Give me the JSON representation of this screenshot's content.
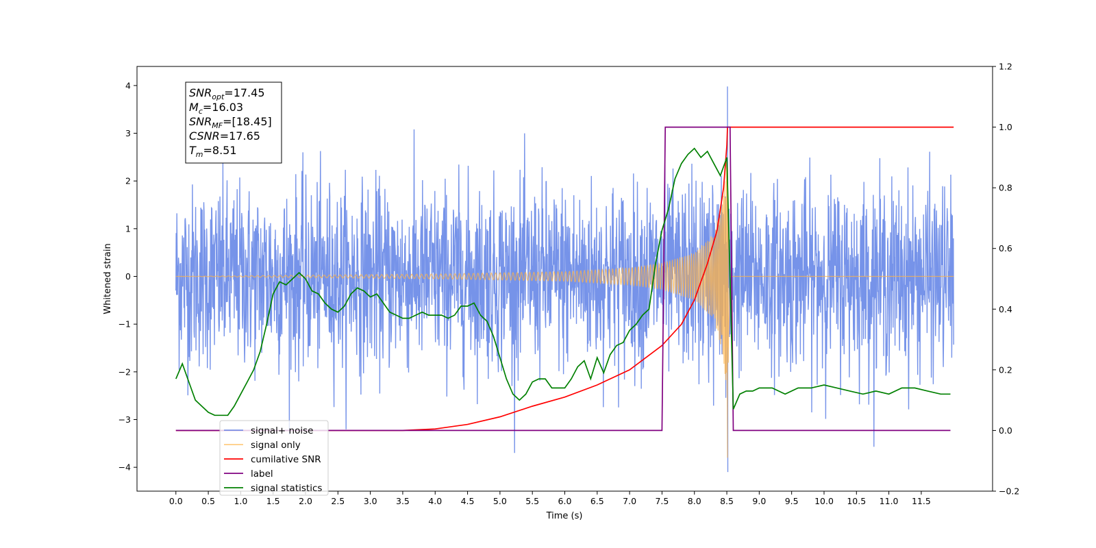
{
  "chart_data": {
    "type": "line",
    "xlabel": "Time (s)",
    "ylabel": "Whitened strain",
    "xlim": [
      -0.6,
      12.6
    ],
    "ylim": [
      -4.5,
      4.4
    ],
    "y2lim": [
      -0.2,
      1.2
    ],
    "x_ticks": [
      "0.0",
      "0.5",
      "1.0",
      "1.5",
      "2.0",
      "2.5",
      "3.0",
      "3.5",
      "4.0",
      "4.5",
      "5.0",
      "5.5",
      "6.0",
      "6.5",
      "7.0",
      "7.5",
      "8.0",
      "8.5",
      "9.0",
      "9.5",
      "10.0",
      "10.5",
      "11.0",
      "11.5"
    ],
    "y_ticks": [
      "−4",
      "−3",
      "−2",
      "−1",
      "0",
      "1",
      "2",
      "3",
      "4"
    ],
    "y2_ticks": [
      "−0.2",
      "0.0",
      "0.2",
      "0.4",
      "0.6",
      "0.8",
      "1.0",
      "1.2"
    ],
    "grid": false,
    "legend_position": "lower-left",
    "annotation": {
      "lines": [
        {
          "sym": "SNR",
          "sub": "opt",
          "value": "=17.45"
        },
        {
          "sym": "M",
          "sub": "c",
          "value": "=16.03"
        },
        {
          "sym": "SNR",
          "sub": "MF",
          "value": "=[18.45]"
        },
        {
          "sym": "CSNR",
          "sub": "",
          "value": "=17.65"
        },
        {
          "sym": "T",
          "sub": "m",
          "value": "=8.51"
        }
      ]
    },
    "series": [
      {
        "name": "signal+ noise",
        "color": "#4169e1",
        "axis": "left",
        "kind": "noise",
        "x_range": [
          0.0,
          12.0
        ],
        "center": 0.0,
        "envelope": 2.4,
        "max": 3.98,
        "min": -4.1
      },
      {
        "name": "signal only",
        "color": "#ffb347",
        "axis": "left",
        "kind": "chirp",
        "x_range": [
          0.0,
          12.0
        ],
        "merger_time": 8.51,
        "peak_amplitude": [
          2.0,
          -3.8
        ],
        "envelope": {
          "x": [
            0.0,
            4.0,
            6.0,
            7.0,
            7.5,
            8.0,
            8.3,
            8.45,
            8.51,
            8.55
          ],
          "amp": [
            0.0,
            0.05,
            0.1,
            0.18,
            0.28,
            0.5,
            0.9,
            1.7,
            3.0,
            0.0
          ]
        }
      },
      {
        "name": "cumilative SNR",
        "color": "#ff0000",
        "axis": "right",
        "x": [
          0.0,
          3.5,
          4.0,
          4.5,
          5.0,
          5.5,
          6.0,
          6.5,
          7.0,
          7.5,
          7.8,
          8.0,
          8.2,
          8.35,
          8.45,
          8.5,
          8.51,
          12.0
        ],
        "y": [
          0.0,
          0.0,
          0.005,
          0.02,
          0.045,
          0.08,
          0.11,
          0.15,
          0.2,
          0.28,
          0.35,
          0.43,
          0.55,
          0.66,
          0.8,
          0.94,
          1.0,
          1.0
        ]
      },
      {
        "name": "label",
        "color": "#800080",
        "axis": "right",
        "x": [
          0.0,
          7.5,
          7.55,
          8.55,
          8.6,
          11.95
        ],
        "y": [
          0.0,
          0.0,
          1.0,
          1.0,
          0.0,
          0.0
        ]
      },
      {
        "name": "signal statistics",
        "color": "#008000",
        "axis": "right",
        "x": [
          0.0,
          0.1,
          0.2,
          0.3,
          0.4,
          0.5,
          0.6,
          0.7,
          0.8,
          0.9,
          1.0,
          1.1,
          1.2,
          1.3,
          1.4,
          1.5,
          1.6,
          1.7,
          1.8,
          1.9,
          2.0,
          2.1,
          2.2,
          2.3,
          2.4,
          2.5,
          2.6,
          2.7,
          2.8,
          2.9,
          3.0,
          3.1,
          3.2,
          3.3,
          3.4,
          3.5,
          3.6,
          3.7,
          3.8,
          3.9,
          4.0,
          4.1,
          4.2,
          4.3,
          4.4,
          4.5,
          4.6,
          4.7,
          4.8,
          4.9,
          5.0,
          5.1,
          5.2,
          5.3,
          5.4,
          5.5,
          5.6,
          5.7,
          5.8,
          5.9,
          6.0,
          6.1,
          6.2,
          6.3,
          6.4,
          6.5,
          6.6,
          6.7,
          6.8,
          6.9,
          7.0,
          7.1,
          7.2,
          7.3,
          7.4,
          7.5,
          7.6,
          7.7,
          7.8,
          7.9,
          8.0,
          8.1,
          8.2,
          8.3,
          8.4,
          8.5,
          8.55,
          8.6,
          8.7,
          8.8,
          8.9,
          9.0,
          9.2,
          9.4,
          9.6,
          9.8,
          10.0,
          10.2,
          10.4,
          10.6,
          10.8,
          11.0,
          11.2,
          11.4,
          11.6,
          11.8,
          11.95
        ],
        "y": [
          0.17,
          0.22,
          0.16,
          0.1,
          0.08,
          0.06,
          0.05,
          0.05,
          0.05,
          0.08,
          0.12,
          0.16,
          0.2,
          0.26,
          0.35,
          0.45,
          0.49,
          0.48,
          0.5,
          0.52,
          0.5,
          0.46,
          0.45,
          0.42,
          0.4,
          0.39,
          0.41,
          0.45,
          0.47,
          0.46,
          0.44,
          0.45,
          0.42,
          0.39,
          0.38,
          0.37,
          0.37,
          0.38,
          0.39,
          0.38,
          0.38,
          0.38,
          0.37,
          0.38,
          0.41,
          0.41,
          0.42,
          0.38,
          0.36,
          0.31,
          0.24,
          0.17,
          0.12,
          0.1,
          0.12,
          0.16,
          0.17,
          0.17,
          0.14,
          0.14,
          0.14,
          0.17,
          0.21,
          0.23,
          0.17,
          0.24,
          0.19,
          0.25,
          0.28,
          0.29,
          0.33,
          0.35,
          0.38,
          0.4,
          0.55,
          0.66,
          0.73,
          0.83,
          0.88,
          0.91,
          0.93,
          0.9,
          0.92,
          0.88,
          0.84,
          0.9,
          0.5,
          0.07,
          0.12,
          0.13,
          0.13,
          0.14,
          0.14,
          0.12,
          0.14,
          0.14,
          0.15,
          0.14,
          0.13,
          0.12,
          0.13,
          0.12,
          0.14,
          0.14,
          0.13,
          0.12,
          0.12
        ]
      }
    ]
  }
}
